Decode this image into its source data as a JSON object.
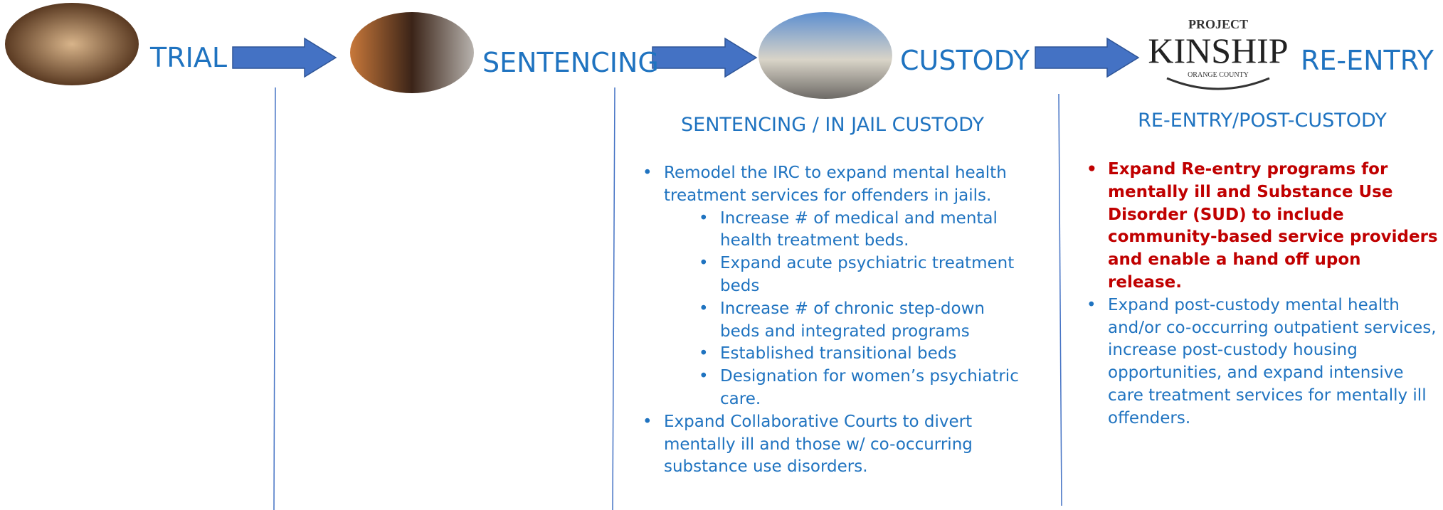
{
  "stages": [
    {
      "label": "TRIAL"
    },
    {
      "label": "SENTENCING"
    },
    {
      "label": "CUSTODY"
    },
    {
      "label": "RE-ENTRY"
    }
  ],
  "logo": {
    "top": "PROJECT",
    "name": "KINSHIP",
    "region": "ORANGE COUNTY"
  },
  "sections": [
    {
      "heading": "SENTENCING / IN JAIL CUSTODY",
      "bullets": [
        {
          "text": "Remodel the IRC to expand mental health treatment services for offenders in jails.",
          "sub": [
            "Increase # of medical and mental health treatment beds.",
            "Expand acute psychiatric treatment beds",
            "Increase # of chronic step-down beds and integrated programs",
            "Established transitional beds",
            "Designation for women’s psychiatric care."
          ]
        },
        {
          "text": "Expand Collaborative Courts to divert mentally ill and those w/ co-occurring substance use disorders.",
          "sub": []
        }
      ]
    },
    {
      "heading": "RE-ENTRY/POST-CUSTODY",
      "bullets": [
        {
          "text": "Expand Re-entry programs for mentally ill and Substance Use Disorder (SUD) to include community-based service providers and enable a hand off upon release.",
          "sub": [],
          "highlight": true
        },
        {
          "text": "Expand post-custody mental health and/or co-occurring outpatient services, increase post-custody housing opportunities, and expand intensive care treatment services for mentally ill offenders.",
          "sub": []
        }
      ]
    }
  ]
}
